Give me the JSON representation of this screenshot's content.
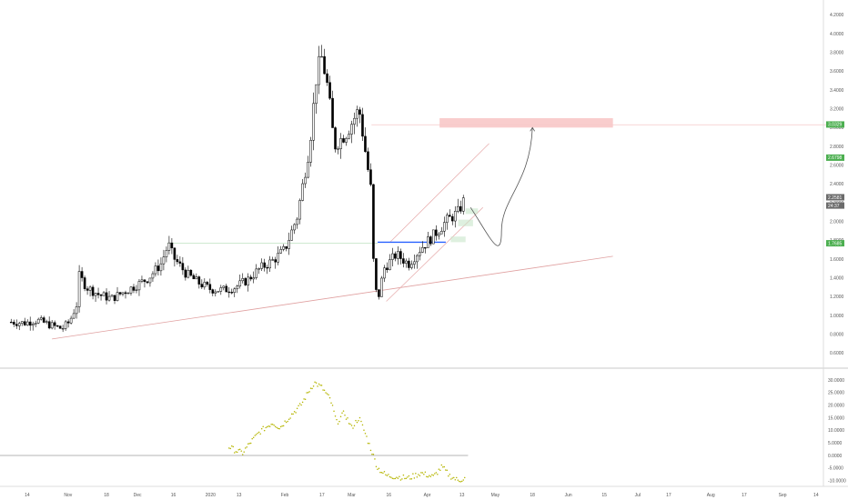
{
  "chart_data": [
    {
      "type": "candlestick",
      "pane": "price",
      "title": "",
      "xlabel": "",
      "ylabel": "",
      "ylim": [
        0.45,
        4.3
      ],
      "grid": false,
      "y_ticks": [
        "0.6000",
        "0.8000",
        "1.0000",
        "1.2000",
        "1.4000",
        "1.6000",
        "1.8000",
        "2.0000",
        "2.2000",
        "2.4000",
        "2.6000",
        "2.8000",
        "3.0000",
        "3.2000",
        "3.4000",
        "3.6000",
        "3.8000",
        "4.0000",
        "4.2000"
      ],
      "price_badges": [
        {
          "label": "3.0329",
          "value": 3.0329,
          "color": "#4caf50"
        },
        {
          "label": "2.6798",
          "value": 2.6798,
          "color": "#4caf50"
        },
        {
          "label": "2.2581",
          "value": 2.2581,
          "color": "#6b6b6b"
        },
        {
          "label": "24:37",
          "value": 2.17,
          "color": "#6b6b6b"
        },
        {
          "label": "1.7685",
          "value": 1.7685,
          "color": "#4caf50"
        }
      ],
      "close_path": [
        [
          0.9,
          0.93
        ],
        [
          2.0,
          0.92
        ],
        [
          3.0,
          0.95
        ],
        [
          4.0,
          0.9
        ],
        [
          5.0,
          0.86
        ],
        [
          5.6,
          0.93
        ],
        [
          6.2,
          1.12
        ],
        [
          6.4,
          1.42
        ],
        [
          7.0,
          1.3
        ],
        [
          8.0,
          1.22
        ],
        [
          9.0,
          1.18
        ],
        [
          10.0,
          1.25
        ],
        [
          11.0,
          1.32
        ],
        [
          12.0,
          1.4
        ],
        [
          13.0,
          1.55
        ],
        [
          13.6,
          1.76
        ],
        [
          14.0,
          1.62
        ],
        [
          15.0,
          1.45
        ],
        [
          16.0,
          1.35
        ],
        [
          17.0,
          1.28
        ],
        [
          18.0,
          1.27
        ],
        [
          19.0,
          1.3
        ],
        [
          20.0,
          1.38
        ],
        [
          21.0,
          1.5
        ],
        [
          22.0,
          1.58
        ],
        [
          23.0,
          1.7
        ],
        [
          24.0,
          2.05
        ],
        [
          25.0,
          2.8
        ],
        [
          25.6,
          3.6
        ],
        [
          26.0,
          3.75
        ],
        [
          26.5,
          3.4
        ],
        [
          27.0,
          2.8
        ],
        [
          28.0,
          2.95
        ],
        [
          29.0,
          3.2
        ],
        [
          29.5,
          2.75
        ],
        [
          30.0,
          2.3
        ],
        [
          30.2,
          1.4
        ],
        [
          30.5,
          1.15
        ],
        [
          31.0,
          1.5
        ],
        [
          32.0,
          1.65
        ],
        [
          33.0,
          1.55
        ],
        [
          34.0,
          1.72
        ],
        [
          35.0,
          1.85
        ],
        [
          36.0,
          2.0
        ],
        [
          37.0,
          2.1
        ],
        [
          37.6,
          2.26
        ]
      ],
      "trendlines": [
        {
          "name": "long-rising-support",
          "from": [
            4.2,
            0.75
          ],
          "to": [
            49.5,
            1.63
          ],
          "color": "#e0a0a0"
        },
        {
          "name": "channel-upper",
          "from": [
            31.5,
            1.78
          ],
          "to": [
            39.5,
            2.83
          ],
          "color": "#e8b0b0"
        },
        {
          "name": "channel-lower",
          "from": [
            31.2,
            1.15
          ],
          "to": [
            39.0,
            2.15
          ],
          "color": "#e8b0b0"
        },
        {
          "name": "horizontal-level-blue",
          "from": [
            30.5,
            1.78
          ],
          "to": [
            36.0,
            1.78
          ],
          "color": "#2962ff"
        },
        {
          "name": "horizontal-level-1.77",
          "from": [
            13.5,
            1.77
          ],
          "to": [
            30.5,
            1.77
          ],
          "color": "#c8e6c9"
        },
        {
          "name": "horizontal-level-3.03",
          "from": [
            30.0,
            3.03
          ],
          "to": [
            67.0,
            3.03
          ],
          "color": "#f5c6c6"
        }
      ],
      "target_zone": {
        "x_from": 35.5,
        "x_to": 49.5,
        "y_from": 3.0,
        "y_to": 3.1,
        "color": "#f8c8c8"
      },
      "projection_path": [
        [
          38.0,
          2.15
        ],
        [
          39.5,
          1.85
        ],
        [
          40.5,
          1.9
        ],
        [
          42.0,
          2.4
        ],
        [
          43.0,
          3.0
        ]
      ]
    },
    {
      "type": "scatter",
      "pane": "oscillator",
      "title": "",
      "xlabel": "",
      "ylabel": "",
      "ylim": [
        -12.5,
        34.5
      ],
      "grid": false,
      "y_ticks": [
        "-10.0000",
        "-5.0000",
        "0.0000",
        "5.0000",
        "10.0000",
        "15.0000",
        "20.0000",
        "25.0000",
        "30.0000"
      ],
      "zero_line": 0,
      "points_color": "#b5b500",
      "path": [
        [
          18.5,
          3.5
        ],
        [
          19.0,
          2.0
        ],
        [
          19.6,
          1.0
        ],
        [
          20.2,
          5.0
        ],
        [
          21.0,
          9.5
        ],
        [
          22.0,
          13.0
        ],
        [
          22.6,
          11.0
        ],
        [
          23.5,
          16.0
        ],
        [
          24.3,
          20.0
        ],
        [
          25.0,
          26.0
        ],
        [
          25.4,
          29.0
        ],
        [
          26.0,
          27.0
        ],
        [
          26.7,
          22.0
        ],
        [
          27.2,
          13.0
        ],
        [
          27.8,
          17.0
        ],
        [
          28.4,
          11.0
        ],
        [
          29.0,
          15.0
        ],
        [
          29.4,
          10.0
        ],
        [
          30.0,
          2.0
        ],
        [
          30.5,
          -5.0
        ],
        [
          31.2,
          -8.0
        ],
        [
          32.0,
          -8.5
        ],
        [
          33.0,
          -9.0
        ],
        [
          34.0,
          -7.0
        ],
        [
          35.0,
          -8.5
        ],
        [
          35.7,
          -4.5
        ],
        [
          36.3,
          -8.0
        ],
        [
          37.0,
          -10.0
        ],
        [
          37.6,
          -9.0
        ]
      ]
    }
  ],
  "x_axis": {
    "labels": [
      {
        "text": "14",
        "x": 2.2
      },
      {
        "text": "Nov",
        "x": 5.5
      },
      {
        "text": "18",
        "x": 8.6
      },
      {
        "text": "Dec",
        "x": 11.1
      },
      {
        "text": "16",
        "x": 14.0
      },
      {
        "text": "2020",
        "x": 17.0
      },
      {
        "text": "13",
        "x": 19.3
      },
      {
        "text": "Feb",
        "x": 23.0
      },
      {
        "text": "17",
        "x": 26.0
      },
      {
        "text": "Mar",
        "x": 28.4
      },
      {
        "text": "16",
        "x": 31.4
      },
      {
        "text": "Apr",
        "x": 34.5
      },
      {
        "text": "13",
        "x": 37.3
      },
      {
        "text": "May",
        "x": 40.0
      },
      {
        "text": "18",
        "x": 43.0
      },
      {
        "text": "Jun",
        "x": 45.9
      },
      {
        "text": "15",
        "x": 48.8
      },
      {
        "text": "Jul",
        "x": 51.5
      },
      {
        "text": "17",
        "x": 54.0
      },
      {
        "text": "Aug",
        "x": 57.4
      },
      {
        "text": "17",
        "x": 60.1
      },
      {
        "text": "Sep",
        "x": 63.2
      },
      {
        "text": "14",
        "x": 65.9
      }
    ],
    "xlim": [
      0,
      66.5
    ]
  },
  "colors": {
    "up": "#ffffff",
    "down": "#000000",
    "wick": "#000000",
    "axis_text": "#555555",
    "separator": "#c8c8c8"
  }
}
